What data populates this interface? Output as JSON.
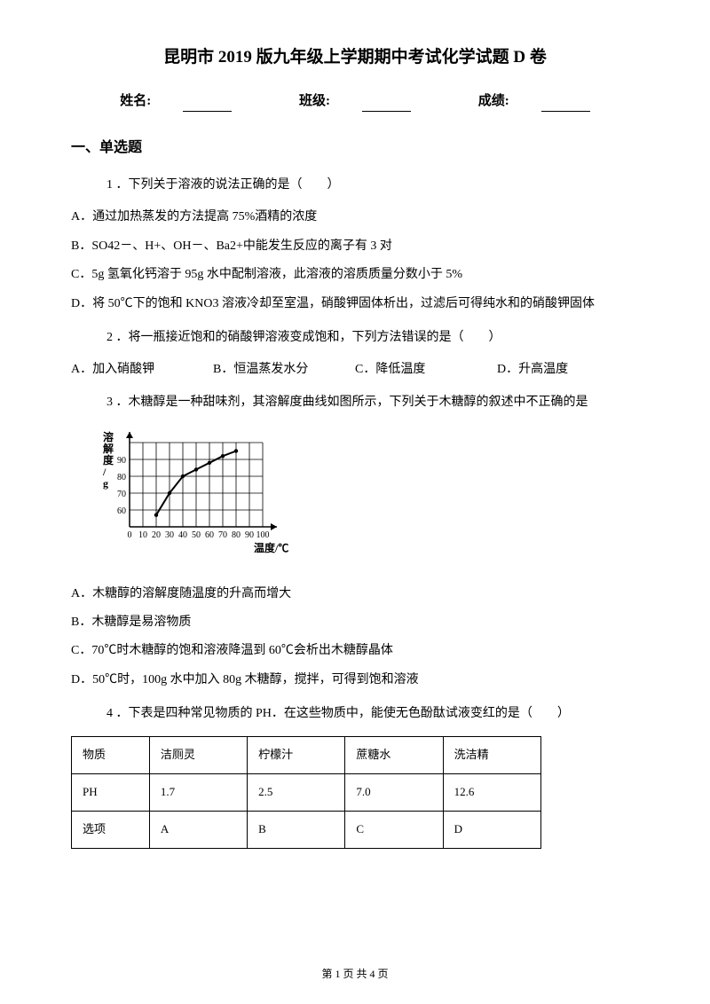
{
  "title": "昆明市 2019 版九年级上学期期中考试化学试题 D 卷",
  "info": {
    "name_label": "姓名:",
    "class_label": "班级:",
    "score_label": "成绩:"
  },
  "section1": "一、单选题",
  "q1": {
    "stem": "1 ．下列关于溶液的说法正确的是（　　）",
    "a": "A．通过加热蒸发的方法提高 75%酒精的浓度",
    "b": "B．SO42－、H+、OH－、Ba2+中能发生反应的离子有 3 对",
    "c": "C．5g 氢氧化钙溶于 95g 水中配制溶液，此溶液的溶质质量分数小于 5%",
    "d": "D．将 50℃下的饱和 KNO3 溶液冷却至室温，硝酸钾固体析出，过滤后可得纯水和的硝酸钾固体"
  },
  "q2": {
    "stem": "2 ．将一瓶接近饱和的硝酸钾溶液变成饱和，下列方法错误的是（　　）",
    "a": "A．加入硝酸钾",
    "b": "B．恒温蒸发水分",
    "c": "C．降低温度",
    "d": "D．升高温度"
  },
  "q3": {
    "stem": "3 ．木糖醇是一种甜味剂，其溶解度曲线如图所示，下列关于木糖醇的叙述中不正确的是",
    "a": "A．木糖醇的溶解度随温度的升高而增大",
    "b": "B．木糖醇是易溶物质",
    "c": "C．70℃时木糖醇的饱和溶液降温到 60℃会析出木糖醇晶体",
    "d": "D．50℃时，100g 水中加入 80g 木糖醇，搅拌，可得到饱和溶液"
  },
  "q4": {
    "stem": "4 ．下表是四种常见物质的 PH．在这些物质中，能使无色酚酞试液变红的是（　　）"
  },
  "table": {
    "r1": [
      "物质",
      "洁厕灵",
      "柠檬汁",
      "蔗糖水",
      "洗洁精"
    ],
    "r2": [
      "PH",
      "1.7",
      "2.5",
      "7.0",
      "12.6"
    ],
    "r3": [
      "选项",
      "A",
      "B",
      "C",
      "D"
    ]
  },
  "chart": {
    "y_label": "溶解度/g",
    "x_label": "温度/℃",
    "x_ticks": [
      "0",
      "10",
      "20",
      "30",
      "40",
      "50",
      "60",
      "70",
      "80",
      "90",
      "100"
    ],
    "y_ticks": [
      "60",
      "70",
      "80",
      "90"
    ],
    "points": [
      {
        "x": 20,
        "y": 57
      },
      {
        "x": 30,
        "y": 70
      },
      {
        "x": 40,
        "y": 80
      },
      {
        "x": 50,
        "y": 84
      },
      {
        "x": 60,
        "y": 88
      },
      {
        "x": 70,
        "y": 92
      },
      {
        "x": 80,
        "y": 95
      }
    ],
    "y_min": 50,
    "y_max": 100,
    "grid_color": "#000000",
    "line_color": "#000000",
    "bg": "#ffffff"
  },
  "footer": "第 1 页 共 4 页"
}
